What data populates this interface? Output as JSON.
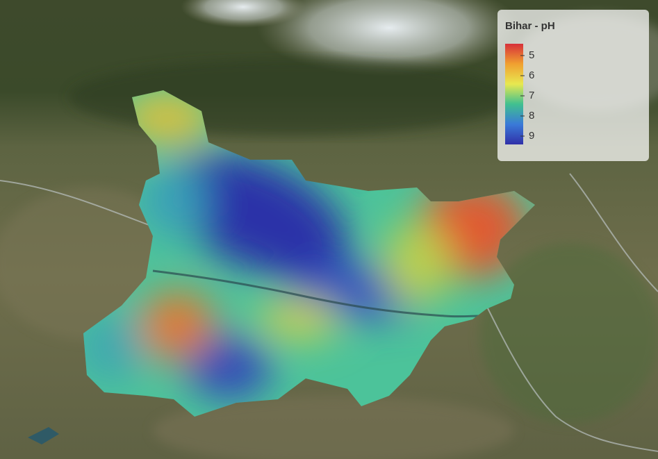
{
  "legend": {
    "title": "Bihar - pH",
    "ticks": [
      5,
      6,
      7,
      8,
      9
    ],
    "colors": [
      "#d7303a",
      "#f0a030",
      "#e8e850",
      "#40c090",
      "#3a7ad8",
      "#3030a8"
    ]
  }
}
